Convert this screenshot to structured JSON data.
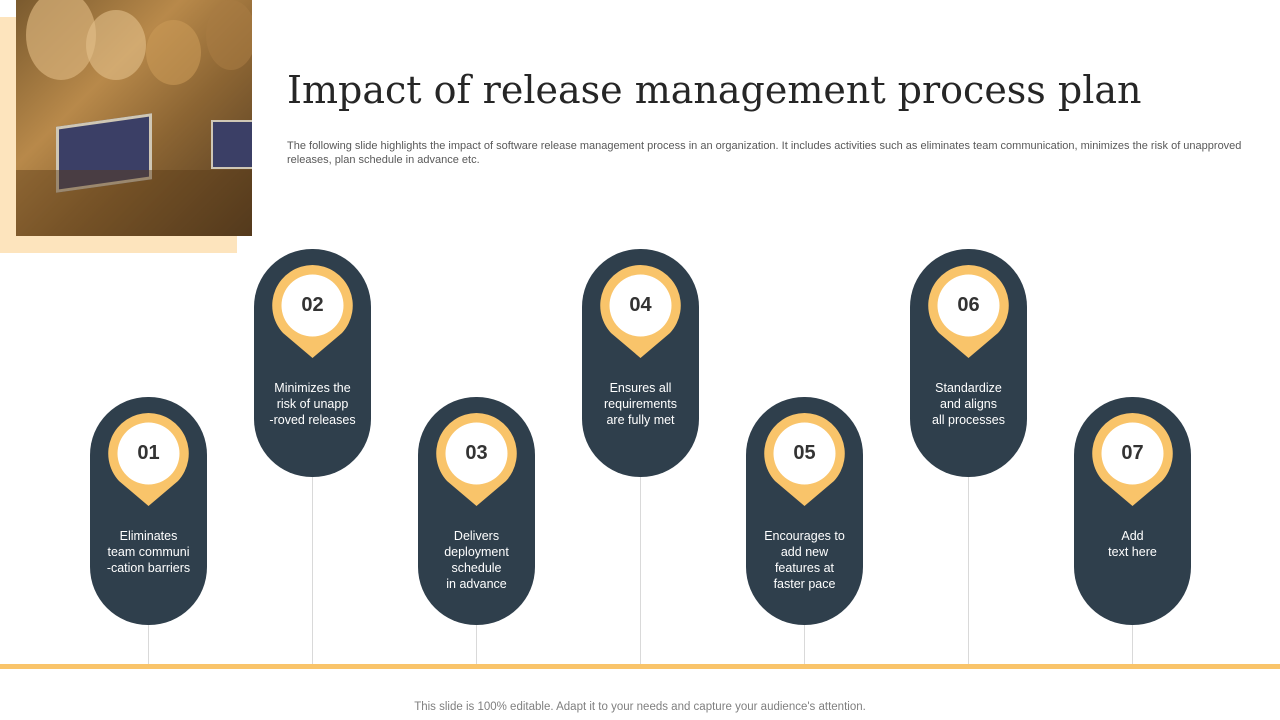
{
  "title": "Impact of release management process plan",
  "subtitle": "The following slide highlights the impact of software release management process in an organization. It includes activities such as eliminates team communication, minimizes the risk of unapproved releases, plan schedule in advance etc.",
  "colors": {
    "pill": "#2f3f4c",
    "accent": "#f9c46a",
    "photo_accent": "#fde4bd"
  },
  "steps": [
    {
      "number": "01",
      "text": "Eliminates\nteam communi\n-cation barriers"
    },
    {
      "number": "02",
      "text": "Minimizes the\nrisk of unapp\n-roved  releases"
    },
    {
      "number": "03",
      "text": "Delivers\ndeployment\nschedule\nin advance"
    },
    {
      "number": "04",
      "text": "Ensures all\nrequirements\nare fully met"
    },
    {
      "number": "05",
      "text": "Encourages to\nadd new\nfeatures at\nfaster pace"
    },
    {
      "number": "06",
      "text": "Standardize\nand aligns\nall processes"
    },
    {
      "number": "07",
      "text": "Add\ntext here"
    }
  ],
  "footer": "This slide is 100% editable. Adapt it to your needs and capture your audience's attention."
}
